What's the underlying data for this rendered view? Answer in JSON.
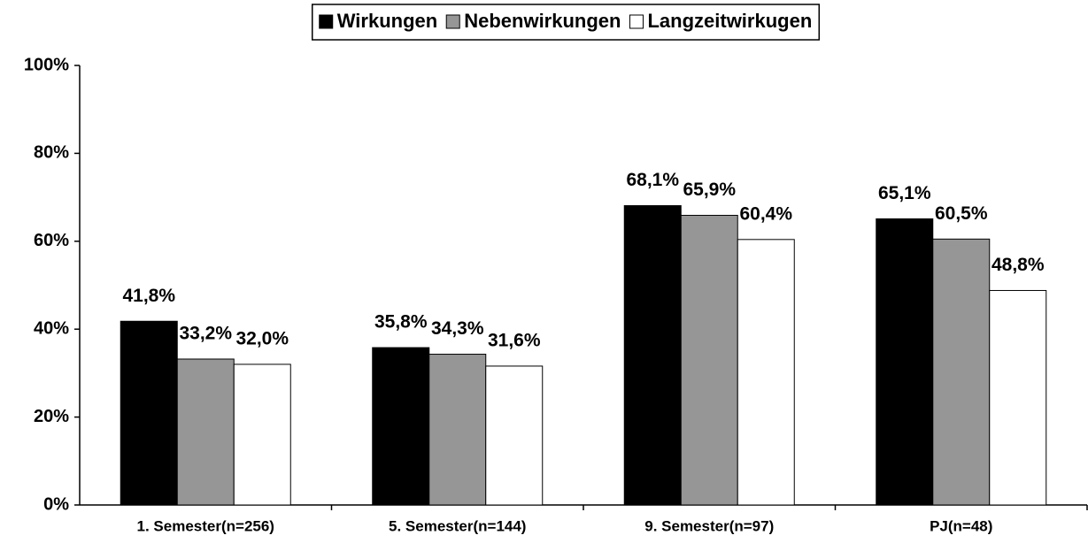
{
  "chart_data": {
    "type": "bar",
    "categories": [
      "1. Semester(n=256)",
      "5. Semester(n=144)",
      "9. Semester(n=97)",
      "PJ(n=48)"
    ],
    "series": [
      {
        "name": "Wirkungen",
        "color": "#000000",
        "values": [
          41.8,
          35.8,
          68.1,
          65.1
        ],
        "value_labels": [
          "41,8%",
          "35,8%",
          "68,1%",
          "65,1%"
        ]
      },
      {
        "name": "Nebenwirkungen",
        "color": "#969696",
        "values": [
          33.2,
          34.3,
          65.9,
          60.5
        ],
        "value_labels": [
          "33,2%",
          "34,3%",
          "65,9%",
          "60,5%"
        ]
      },
      {
        "name": "Langzeitwirkugen",
        "color": "#ffffff",
        "values": [
          32.0,
          31.6,
          60.4,
          48.8
        ],
        "value_labels": [
          "32,0%",
          "31,6%",
          "60,4%",
          "48,8%"
        ]
      }
    ],
    "ylim": [
      0,
      100
    ],
    "yticks": [
      {
        "value": 0,
        "label": "0%"
      },
      {
        "value": 20,
        "label": "20%"
      },
      {
        "value": 40,
        "label": "40%"
      },
      {
        "value": 60,
        "label": "60%"
      },
      {
        "value": 80,
        "label": "80%"
      },
      {
        "value": 100,
        "label": "100%"
      }
    ],
    "grid": false,
    "legend": "top"
  }
}
